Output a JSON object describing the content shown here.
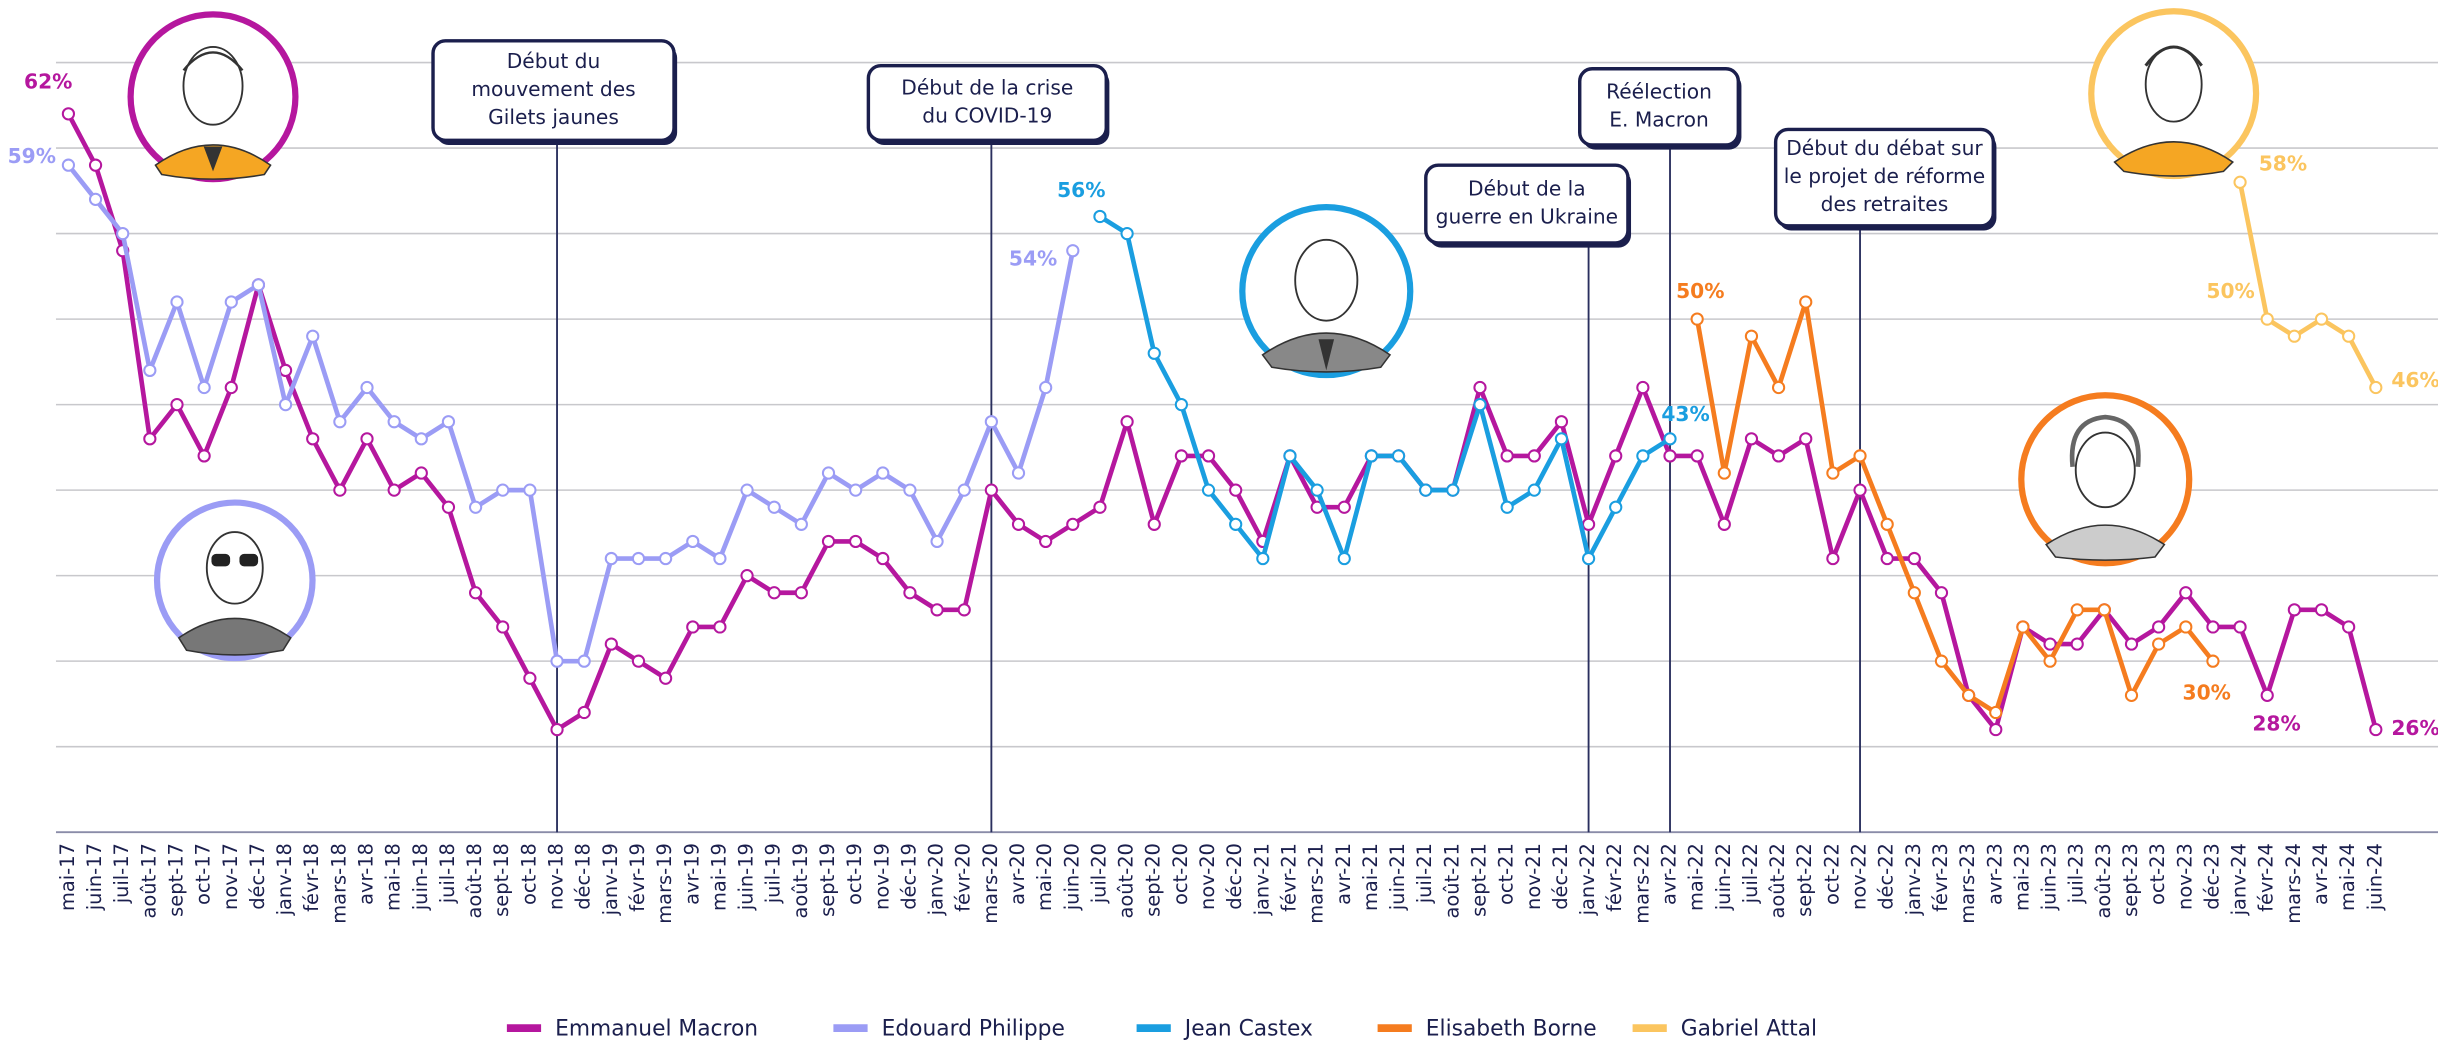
{
  "chart_data": {
    "type": "line",
    "categories": [
      "mai-17",
      "juin-17",
      "juil-17",
      "août-17",
      "sept-17",
      "oct-17",
      "nov-17",
      "déc-17",
      "janv-18",
      "févr-18",
      "mars-18",
      "avr-18",
      "mai-18",
      "juin-18",
      "juil-18",
      "août-18",
      "sept-18",
      "oct-18",
      "nov-18",
      "déc-18",
      "janv-19",
      "févr-19",
      "mars-19",
      "avr-19",
      "mai-19",
      "juin-19",
      "juil-19",
      "août-19",
      "sept-19",
      "oct-19",
      "nov-19",
      "déc-19",
      "janv-20",
      "févr-20",
      "mars-20",
      "avr-20",
      "mai-20",
      "juin-20",
      "juil-20",
      "août-20",
      "sept-20",
      "oct-20",
      "nov-20",
      "déc-20",
      "janv-21",
      "févr-21",
      "mars-21",
      "avr-21",
      "mai-21",
      "juin-21",
      "juil-21",
      "août-21",
      "sept-21",
      "oct-21",
      "nov-21",
      "déc-21",
      "janv-22",
      "févr-22",
      "mars-22",
      "avr-22",
      "mai-22",
      "juin-22",
      "juil-22",
      "août-22",
      "sept-22",
      "oct-22",
      "nov-22",
      "déc-22",
      "janv-23",
      "févr-23",
      "mars-23",
      "avr-23",
      "mai-23",
      "juin-23",
      "juil-23",
      "août-23",
      "sept-23",
      "oct-23",
      "nov-23",
      "déc-23",
      "janv-24",
      "févr-24",
      "mars-24",
      "avr-24",
      "mai-24",
      "juin-24"
    ],
    "ylim": [
      20,
      65
    ],
    "yticks": [
      20,
      25,
      30,
      35,
      40,
      45,
      50,
      55,
      60,
      65
    ],
    "grid": true,
    "legend": "bottom",
    "series": [
      {
        "name": "Emmanuel Macron",
        "color": "#b5179e",
        "values": [
          62,
          59,
          54,
          43,
          45,
          42,
          46,
          52,
          47,
          43,
          40,
          43,
          40,
          41,
          39,
          34,
          32,
          29,
          26,
          27,
          31,
          30,
          29,
          32,
          32,
          35,
          34,
          34,
          37,
          37,
          36,
          34,
          33,
          33,
          40,
          38,
          37,
          38,
          39,
          44,
          38,
          42,
          42,
          40,
          37,
          42,
          39,
          39,
          42,
          42,
          40,
          40,
          46,
          42,
          42,
          44,
          38,
          42,
          46,
          42,
          42,
          38,
          43,
          42,
          43,
          36,
          40,
          36,
          36,
          34,
          28,
          26,
          32,
          31,
          31,
          33,
          31,
          32,
          34,
          32,
          32,
          28,
          33,
          33,
          32,
          26
        ],
        "value_labels": [
          "62%",
          null,
          null,
          null,
          null,
          null,
          null,
          null,
          null,
          null,
          null,
          null,
          null,
          null,
          null,
          null,
          null,
          null,
          null,
          null,
          null,
          null,
          null,
          null,
          null,
          null,
          null,
          null,
          null,
          null,
          null,
          null,
          null,
          null,
          null,
          null,
          null,
          null,
          null,
          null,
          null,
          null,
          null,
          null,
          null,
          null,
          null,
          null,
          null,
          null,
          null,
          null,
          null,
          null,
          null,
          null,
          null,
          null,
          null,
          null,
          null,
          null,
          null,
          null,
          null,
          null,
          null,
          null,
          null,
          null,
          null,
          null,
          null,
          null,
          null,
          null,
          null,
          null,
          null,
          null,
          null,
          "28%",
          null,
          null,
          null,
          "26%"
        ]
      },
      {
        "name": "Edouard Philippe",
        "color": "#9b9cf5",
        "values": [
          59,
          57,
          55,
          47,
          51,
          46,
          51,
          52,
          45,
          49,
          44,
          46,
          44,
          43,
          44,
          39,
          40,
          40,
          30,
          30,
          36,
          36,
          36,
          37,
          36,
          40,
          39,
          38,
          41,
          40,
          41,
          40,
          37,
          40,
          44,
          41,
          46,
          54,
          null,
          null,
          null,
          null,
          null,
          null,
          null,
          null,
          null,
          null,
          null,
          null,
          null,
          null,
          null,
          null,
          null,
          null,
          null,
          null,
          null,
          null,
          null,
          null,
          null,
          null,
          null,
          null,
          null,
          null,
          null,
          null,
          null,
          null,
          null,
          null,
          null,
          null,
          null,
          null,
          null,
          null,
          null,
          null,
          null,
          null,
          null,
          null
        ],
        "value_labels": [
          "59%",
          null,
          null,
          null,
          null,
          null,
          null,
          null,
          null,
          null,
          null,
          null,
          null,
          null,
          null,
          null,
          null,
          null,
          null,
          null,
          null,
          null,
          null,
          null,
          null,
          null,
          null,
          null,
          null,
          null,
          null,
          null,
          null,
          null,
          null,
          null,
          null,
          "54%",
          null,
          null,
          null,
          null,
          null,
          null,
          null,
          null,
          null,
          null,
          null,
          null,
          null,
          null,
          null,
          null,
          null,
          null,
          null,
          null,
          null,
          null,
          null,
          null,
          null,
          null,
          null,
          null,
          null,
          null,
          null,
          null,
          null,
          null,
          null,
          null,
          null,
          null,
          null,
          null,
          null,
          null,
          null,
          null,
          null,
          null,
          null,
          null
        ]
      },
      {
        "name": "Jean Castex",
        "color": "#1a9ee0",
        "values": [
          null,
          null,
          null,
          null,
          null,
          null,
          null,
          null,
          null,
          null,
          null,
          null,
          null,
          null,
          null,
          null,
          null,
          null,
          null,
          null,
          null,
          null,
          null,
          null,
          null,
          null,
          null,
          null,
          null,
          null,
          null,
          null,
          null,
          null,
          null,
          null,
          null,
          null,
          56,
          55,
          48,
          45,
          40,
          38,
          36,
          42,
          40,
          36,
          42,
          42,
          40,
          40,
          45,
          39,
          40,
          43,
          36,
          39,
          42,
          43,
          null,
          null,
          null,
          null,
          null,
          null,
          null,
          null,
          null,
          null,
          null,
          null,
          null,
          null,
          null,
          null,
          null,
          null,
          null,
          null,
          null,
          null,
          null,
          null,
          null,
          null
        ],
        "value_labels": [
          null,
          null,
          null,
          null,
          null,
          null,
          null,
          null,
          null,
          null,
          null,
          null,
          null,
          null,
          null,
          null,
          null,
          null,
          null,
          null,
          null,
          null,
          null,
          null,
          null,
          null,
          null,
          null,
          null,
          null,
          null,
          null,
          null,
          null,
          null,
          null,
          null,
          null,
          "56%",
          null,
          null,
          null,
          null,
          null,
          null,
          null,
          null,
          null,
          null,
          null,
          null,
          null,
          null,
          null,
          null,
          null,
          null,
          null,
          null,
          "43%",
          null,
          null,
          null,
          null,
          null,
          null,
          null,
          null,
          null,
          null,
          null,
          null,
          null,
          null,
          null,
          null,
          null,
          null,
          null,
          null,
          null,
          null,
          null,
          null,
          null,
          null
        ]
      },
      {
        "name": "Elisabeth Borne",
        "color": "#f57c1f",
        "values": [
          null,
          null,
          null,
          null,
          null,
          null,
          null,
          null,
          null,
          null,
          null,
          null,
          null,
          null,
          null,
          null,
          null,
          null,
          null,
          null,
          null,
          null,
          null,
          null,
          null,
          null,
          null,
          null,
          null,
          null,
          null,
          null,
          null,
          null,
          null,
          null,
          null,
          null,
          null,
          null,
          null,
          null,
          null,
          null,
          null,
          null,
          null,
          null,
          null,
          null,
          null,
          null,
          null,
          null,
          null,
          null,
          null,
          null,
          null,
          null,
          50,
          41,
          49,
          46,
          51,
          41,
          42,
          38,
          34,
          30,
          28,
          27,
          32,
          30,
          33,
          33,
          28,
          31,
          32,
          30,
          null,
          null,
          null,
          null,
          null,
          null
        ],
        "value_labels": [
          null,
          null,
          null,
          null,
          null,
          null,
          null,
          null,
          null,
          null,
          null,
          null,
          null,
          null,
          null,
          null,
          null,
          null,
          null,
          null,
          null,
          null,
          null,
          null,
          null,
          null,
          null,
          null,
          null,
          null,
          null,
          null,
          null,
          null,
          null,
          null,
          null,
          null,
          null,
          null,
          null,
          null,
          null,
          null,
          null,
          null,
          null,
          null,
          null,
          null,
          null,
          null,
          null,
          null,
          null,
          null,
          null,
          null,
          null,
          null,
          "50%",
          null,
          null,
          null,
          null,
          null,
          null,
          null,
          null,
          null,
          null,
          null,
          null,
          null,
          null,
          null,
          null,
          null,
          null,
          "30%",
          null,
          null,
          null,
          null,
          null,
          null
        ]
      },
      {
        "name": "Gabriel Attal",
        "color": "#fbc55f",
        "values": [
          null,
          null,
          null,
          null,
          null,
          null,
          null,
          null,
          null,
          null,
          null,
          null,
          null,
          null,
          null,
          null,
          null,
          null,
          null,
          null,
          null,
          null,
          null,
          null,
          null,
          null,
          null,
          null,
          null,
          null,
          null,
          null,
          null,
          null,
          null,
          null,
          null,
          null,
          null,
          null,
          null,
          null,
          null,
          null,
          null,
          null,
          null,
          null,
          null,
          null,
          null,
          null,
          null,
          null,
          null,
          null,
          null,
          null,
          null,
          null,
          null,
          null,
          null,
          null,
          null,
          null,
          null,
          null,
          null,
          null,
          null,
          null,
          null,
          null,
          null,
          null,
          null,
          null,
          null,
          null,
          58,
          50,
          49,
          50,
          49,
          46
        ],
        "value_labels": [
          null,
          null,
          null,
          null,
          null,
          null,
          null,
          null,
          null,
          null,
          null,
          null,
          null,
          null,
          null,
          null,
          null,
          null,
          null,
          null,
          null,
          null,
          null,
          null,
          null,
          null,
          null,
          null,
          null,
          null,
          null,
          null,
          null,
          null,
          null,
          null,
          null,
          null,
          null,
          null,
          null,
          null,
          null,
          null,
          null,
          null,
          null,
          null,
          null,
          null,
          null,
          null,
          null,
          null,
          null,
          null,
          null,
          null,
          null,
          null,
          null,
          null,
          null,
          null,
          null,
          null,
          null,
          null,
          null,
          null,
          null,
          null,
          null,
          null,
          null,
          null,
          null,
          null,
          null,
          null,
          "58%",
          "50%",
          null,
          null,
          null,
          "46%"
        ]
      }
    ],
    "annotations": [
      {
        "x": "nov-18",
        "text": [
          "Début du",
          "mouvement des",
          "Gilets jaunes"
        ]
      },
      {
        "x": "mars-20",
        "text": [
          "Début de la crise",
          "du COVID-19"
        ]
      },
      {
        "x": "janv-22",
        "text": [
          "Début de la",
          "guerre en Ukraine"
        ]
      },
      {
        "x": "avr-22",
        "text": [
          "Réélection",
          "E. Macron"
        ]
      },
      {
        "x": "nov-22",
        "text": [
          "Début du débat sur",
          "le projet de réforme",
          "des retraites"
        ]
      }
    ]
  }
}
